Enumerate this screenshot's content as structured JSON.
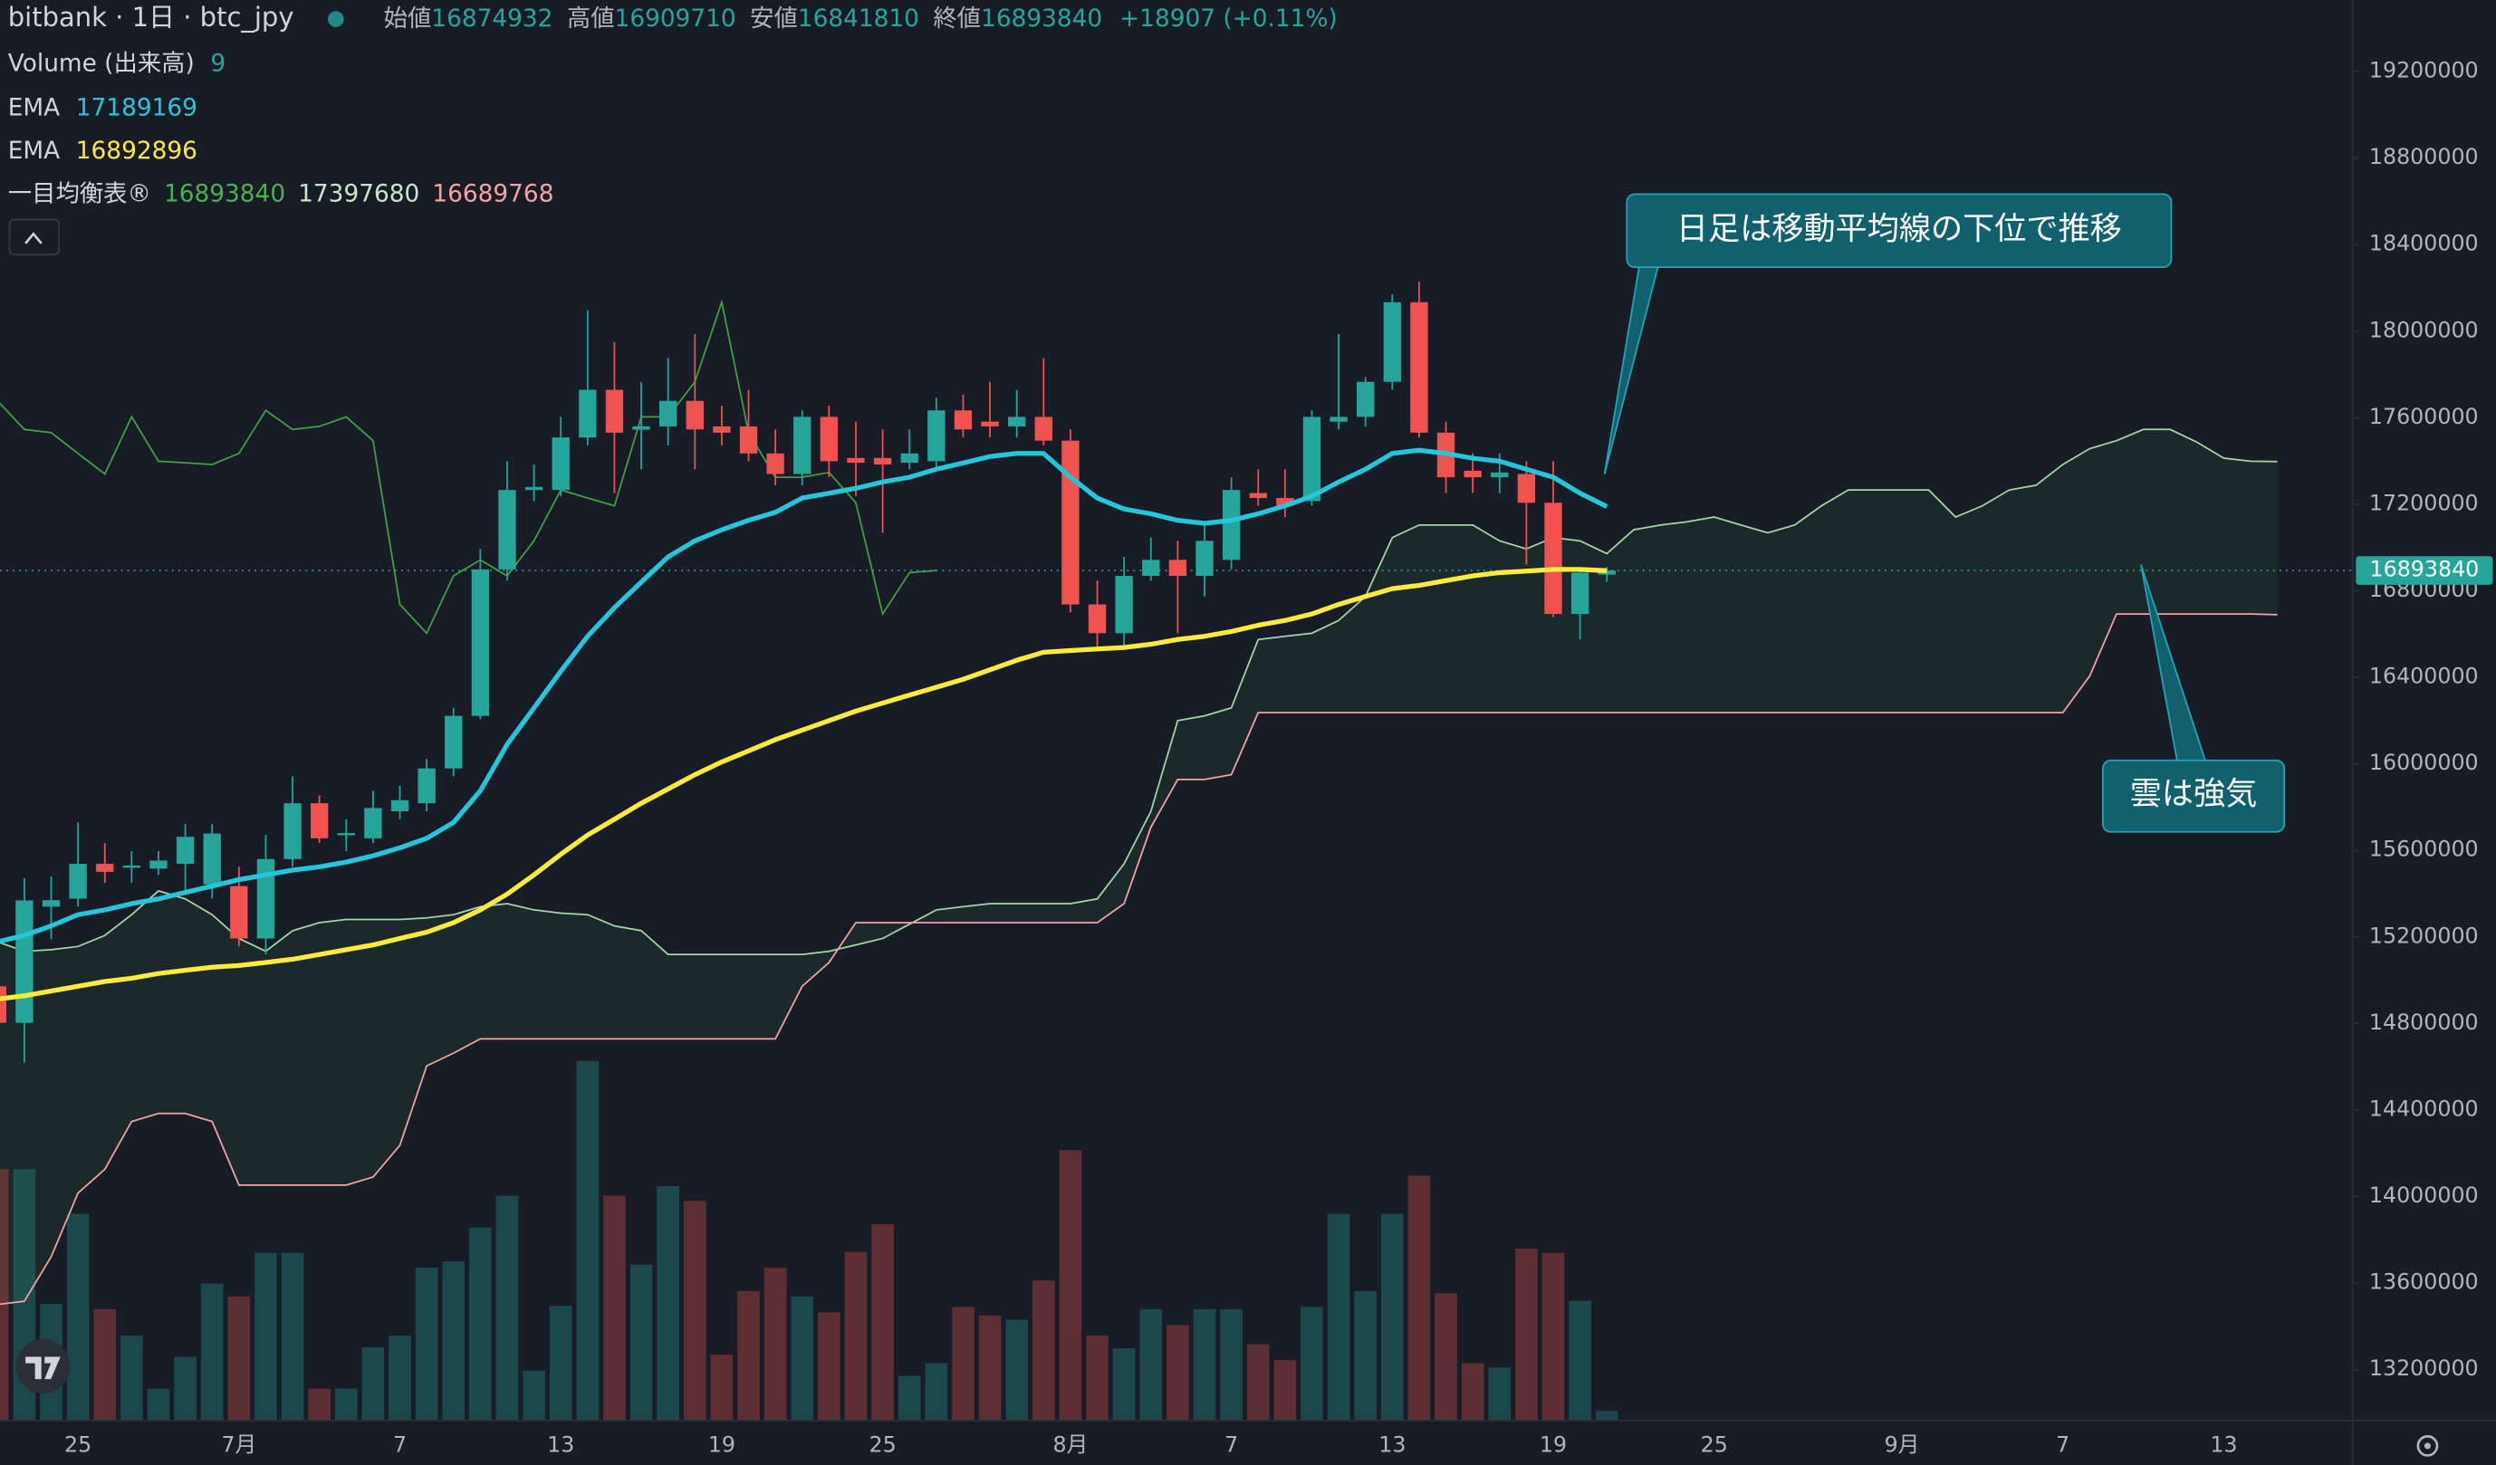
{
  "header": {
    "symbol": "bitbank · 1日 · btc_jpy",
    "open_label": "始値",
    "high_label": "高値",
    "low_label": "安値",
    "close_label": "終値",
    "change": "+18907 (+0.11%)"
  },
  "annotations": [
    "日足は移動平均線の下位で推移",
    "雲は強気"
  ],
  "chart_data": {
    "type": "candlestick",
    "categories": [
      null,
      null,
      null,
      "25",
      null,
      null,
      null,
      null,
      null,
      "7月",
      null,
      null,
      null,
      null,
      null,
      "7",
      null,
      null,
      null,
      null,
      null,
      "13",
      null,
      null,
      null,
      null,
      null,
      "19",
      null,
      null,
      null,
      null,
      null,
      "25",
      null,
      null,
      null,
      null,
      null,
      null,
      "8月",
      null,
      null,
      null,
      null,
      null,
      "7",
      null,
      null,
      null,
      null,
      null,
      "13",
      null,
      null,
      null,
      null,
      null,
      "19",
      null,
      null,
      null,
      null,
      null,
      "25",
      null,
      null,
      null,
      null,
      null,
      null,
      "9月",
      null,
      null,
      null,
      null,
      null,
      "7",
      null,
      null,
      null,
      null,
      null,
      "13",
      null,
      null
    ],
    "open": [
      14972000,
      14803000,
      15340000,
      15377000,
      15538000,
      15520000,
      15516000,
      15538000,
      15443000,
      15435000,
      15193000,
      15560000,
      15818000,
      15670000,
      15656000,
      15781000,
      15818000,
      15979000,
      16222000,
      16899000,
      17266000,
      17266000,
      17509000,
      17729000,
      17545000,
      17560000,
      17678000,
      17560000,
      17560000,
      17435000,
      17340000,
      17604000,
      17414000,
      17414000,
      17392000,
      17399000,
      17634000,
      17582000,
      17560000,
      17604000,
      17494000,
      16737000,
      16604000,
      16869000,
      16943000,
      16869000,
      16943000,
      17252000,
      17229000,
      17215000,
      17582000,
      17604000,
      17766000,
      18134000,
      17531000,
      17355000,
      17325000,
      17340000,
      17207000,
      16693000,
      16874932,
      null,
      null,
      null,
      null,
      null,
      null,
      null,
      null,
      null,
      null,
      null,
      null,
      null,
      null,
      null,
      null,
      null,
      null,
      null,
      null,
      null,
      null,
      null,
      null,
      null
    ],
    "high": [
      15009000,
      15472000,
      15480000,
      15729000,
      15634000,
      15597000,
      15597000,
      15722000,
      15722000,
      15524000,
      15671000,
      15943000,
      15854000,
      15744000,
      15876000,
      15899000,
      16023000,
      16259000,
      16994000,
      17399000,
      17384000,
      17604000,
      18097000,
      17950000,
      17766000,
      17876000,
      17987000,
      17656000,
      17729000,
      17546000,
      17634000,
      17656000,
      17582000,
      17546000,
      17546000,
      17693000,
      17707000,
      17766000,
      17729000,
      17876000,
      17546000,
      16847000,
      16957000,
      17046000,
      17031000,
      17104000,
      17325000,
      17362000,
      17362000,
      17634000,
      17987000,
      17788000,
      18171000,
      18229000,
      17582000,
      17435000,
      17435000,
      17399000,
      17399000,
      16899000,
      16909710,
      null,
      null,
      null,
      null,
      null,
      null,
      null,
      null,
      null,
      null,
      null,
      null,
      null,
      null,
      null,
      null,
      null,
      null,
      null,
      null,
      null,
      null,
      null,
      null,
      null
    ],
    "low": [
      14619000,
      14619000,
      15190000,
      15340000,
      15450000,
      15450000,
      15487000,
      15413000,
      15377000,
      15156000,
      15119000,
      15524000,
      15634000,
      15597000,
      15634000,
      15744000,
      15781000,
      15943000,
      16207000,
      16847000,
      17215000,
      17237000,
      17472000,
      17252000,
      17362000,
      17472000,
      17362000,
      17472000,
      17399000,
      17288000,
      17288000,
      17325000,
      17237000,
      17068000,
      17362000,
      17362000,
      17509000,
      17509000,
      17509000,
      17472000,
      16700000,
      16531000,
      16531000,
      16847000,
      16604000,
      16774000,
      16899000,
      17193000,
      17141000,
      17193000,
      17546000,
      17560000,
      17729000,
      17509000,
      17252000,
      17252000,
      17252000,
      16921000,
      16678000,
      16575000,
      16841810,
      null,
      null,
      null,
      null,
      null,
      null,
      null,
      null,
      null,
      null,
      null,
      null,
      null,
      null,
      null,
      null,
      null,
      null,
      null,
      null,
      null,
      null,
      null,
      null,
      null
    ],
    "close": [
      14803000,
      15369000,
      15370000,
      15538000,
      15501000,
      15530000,
      15553000,
      15663000,
      15678000,
      15193000,
      15560000,
      15818000,
      15656000,
      15680000,
      15796000,
      15832000,
      15979000,
      16222000,
      16899000,
      17266000,
      17280000,
      17509000,
      17729000,
      17531000,
      17560000,
      17678000,
      17546000,
      17531000,
      17435000,
      17340000,
      17604000,
      17399000,
      17392000,
      17384000,
      17435000,
      17634000,
      17546000,
      17560000,
      17604000,
      17494000,
      16737000,
      16604000,
      16869000,
      16943000,
      16869000,
      17031000,
      17266000,
      17229000,
      17193000,
      17604000,
      17604000,
      17766000,
      18134000,
      17531000,
      17325000,
      17325000,
      17347000,
      17207000,
      16693000,
      16884000,
      16893840,
      null,
      null,
      null,
      null,
      null,
      null,
      null,
      null,
      null,
      null,
      null,
      null,
      null,
      null,
      null,
      null,
      null,
      null,
      null,
      null,
      null,
      null,
      null,
      null,
      null
    ],
    "volume": {
      "name": "Volume (出来高)",
      "values": [
        237,
        237,
        110,
        195,
        105,
        80,
        30,
        60,
        129,
        117,
        158,
        158,
        30,
        30,
        69,
        80,
        144,
        150,
        182,
        212,
        47,
        108,
        339,
        212,
        147,
        221,
        207,
        62,
        122,
        144,
        117,
        102,
        159,
        185,
        42,
        54,
        107,
        99,
        95,
        132,
        255,
        80,
        68,
        105,
        90,
        105,
        105,
        72,
        57,
        107,
        195,
        122,
        195,
        231,
        120,
        54,
        50,
        162,
        158,
        113,
        9,
        null,
        null,
        null,
        null,
        null,
        null,
        null,
        null,
        null,
        null,
        null,
        null,
        null,
        null,
        null,
        null,
        null,
        null,
        null,
        null,
        null,
        null,
        null,
        null,
        null
      ]
    },
    "series": [
      {
        "name": "EMA",
        "color": "#26c6da",
        "values": [
          15178000,
          15207000,
          15251000,
          15303000,
          15325000,
          15354000,
          15376000,
          15406000,
          15435000,
          15465000,
          15487000,
          15509000,
          15524000,
          15546000,
          15575000,
          15612000,
          15656000,
          15729000,
          15876000,
          16090000,
          16259000,
          16428000,
          16590000,
          16722000,
          16840000,
          16957000,
          17031000,
          17082000,
          17126000,
          17163000,
          17229000,
          17251000,
          17274000,
          17303000,
          17325000,
          17362000,
          17391000,
          17421000,
          17435000,
          17435000,
          17325000,
          17229000,
          17178000,
          17156000,
          17126000,
          17112000,
          17126000,
          17156000,
          17193000,
          17237000,
          17303000,
          17362000,
          17435000,
          17450000,
          17435000,
          17413000,
          17399000,
          17362000,
          17325000,
          17251000,
          17189169,
          null,
          null,
          null,
          null,
          null,
          null,
          null,
          null,
          null,
          null,
          null,
          null,
          null,
          null,
          null,
          null,
          null,
          null,
          null,
          null,
          null,
          null,
          null,
          null,
          null
        ]
      },
      {
        "name": "EMA",
        "color": "#ffeb3b",
        "values": [
          14913000,
          14928000,
          14950000,
          14972000,
          14994000,
          15009000,
          15031000,
          15046000,
          15060000,
          15068000,
          15082000,
          15097000,
          15119000,
          15141000,
          15163000,
          15193000,
          15222000,
          15266000,
          15325000,
          15398000,
          15487000,
          15582000,
          15671000,
          15744000,
          15818000,
          15884000,
          15950000,
          16009000,
          16060000,
          16112000,
          16156000,
          16200000,
          16244000,
          16281000,
          16318000,
          16354000,
          16391000,
          16435000,
          16479000,
          16516000,
          16524000,
          16531000,
          16538000,
          16553000,
          16575000,
          16590000,
          16612000,
          16641000,
          16663000,
          16693000,
          16737000,
          16774000,
          16810000,
          16825000,
          16847000,
          16869000,
          16884000,
          16891000,
          16899000,
          16899000,
          16892896,
          null,
          null,
          null,
          null,
          null,
          null,
          null,
          null,
          null,
          null,
          null,
          null,
          null,
          null,
          null,
          null,
          null,
          null,
          null,
          null,
          null,
          null,
          null,
          null,
          null
        ]
      }
    ],
    "ichimoku": {
      "name": "一目均衡表®",
      "cloud_color": "rgba(76,175,80,0.09)",
      "lines": [
        {
          "color": "#43a047",
          "values": [
            17678000,
            17546000,
            17531000,
            17435000,
            17340000,
            17604000,
            17399000,
            17392000,
            17384000,
            17435000,
            17634000,
            17546000,
            17560000,
            17604000,
            17494000,
            16737000,
            16604000,
            16869000,
            16943000,
            16869000,
            17031000,
            17266000,
            17229000,
            17193000,
            17604000,
            17604000,
            17766000,
            18134000,
            17531000,
            17325000,
            17325000,
            17347000,
            17207000,
            16693000,
            16884000,
            16893840,
            null,
            null,
            null,
            null,
            null,
            null,
            null,
            null,
            null,
            null,
            null,
            null,
            null,
            null,
            null,
            null,
            null,
            null,
            null,
            null,
            null,
            null,
            null,
            null,
            null,
            null,
            null,
            null,
            null,
            null,
            null,
            null,
            null,
            null,
            null,
            null,
            null,
            null,
            null,
            null,
            null,
            null,
            null,
            null,
            null,
            null,
            null,
            null,
            null,
            null
          ]
        },
        {
          "color": "#a5d6a7",
          "values": [
            15178000,
            15134000,
            15141000,
            15156000,
            15207000,
            15303000,
            15413000,
            15376000,
            15303000,
            15193000,
            15134000,
            15229000,
            15266000,
            15281000,
            15281000,
            15281000,
            15288000,
            15303000,
            15340000,
            15354000,
            15325000,
            15310000,
            15303000,
            15251000,
            15229000,
            15119000,
            15119000,
            15119000,
            15119000,
            15119000,
            15119000,
            15134000,
            15163000,
            15193000,
            15259000,
            15325000,
            15340000,
            15354000,
            15354000,
            15354000,
            15354000,
            15376000,
            15538000,
            15781000,
            16200000,
            16222000,
            16259000,
            16575000,
            16590000,
            16604000,
            16663000,
            16774000,
            17046000,
            17104000,
            17104000,
            17104000,
            17031000,
            16994000,
            17046000,
            17031000,
            16972000,
            17082000,
            17104000,
            17119000,
            17141000,
            17104000,
            17068000,
            17104000,
            17193000,
            17266000,
            17266000,
            17266000,
            17266000,
            17141000,
            17193000,
            17266000,
            17288000,
            17384000,
            17457000,
            17494000,
            17546000,
            17546000,
            17487000,
            17413000,
            17399000,
            17397680
          ]
        },
        {
          "color": "#f4a3a3",
          "values": [
            13501000,
            13516000,
            13722000,
            14016000,
            14126000,
            14347000,
            14384000,
            14384000,
            14347000,
            14053000,
            14053000,
            14053000,
            14053000,
            14053000,
            14090000,
            14237000,
            14604000,
            14663000,
            14729000,
            14729000,
            14729000,
            14729000,
            14729000,
            14729000,
            14729000,
            14729000,
            14729000,
            14729000,
            14729000,
            14729000,
            14972000,
            15082000,
            15266000,
            15266000,
            15266000,
            15266000,
            15266000,
            15266000,
            15266000,
            15266000,
            15266000,
            15266000,
            15354000,
            15707000,
            15928000,
            15928000,
            15950000,
            16237000,
            16237000,
            16237000,
            16237000,
            16237000,
            16237000,
            16237000,
            16237000,
            16237000,
            16237000,
            16237000,
            16237000,
            16237000,
            16237000,
            16237000,
            16237000,
            16237000,
            16237000,
            16237000,
            16237000,
            16237000,
            16237000,
            16237000,
            16237000,
            16237000,
            16237000,
            16237000,
            16237000,
            16237000,
            16237000,
            16237000,
            16406000,
            16693000,
            16693000,
            16693000,
            16693000,
            16693000,
            16693000,
            16689768
          ]
        }
      ]
    },
    "colors": {
      "up": "#26a69a",
      "down": "#ef5350"
    },
    "ylim": [
      12965000,
      19531000
    ],
    "yticks": [
      13200000,
      13600000,
      14000000,
      14400000,
      14800000,
      15200000,
      15600000,
      16000000,
      16400000,
      16800000,
      17200000,
      17600000,
      18000000,
      18400000,
      18800000,
      19200000
    ],
    "grid": false
  }
}
